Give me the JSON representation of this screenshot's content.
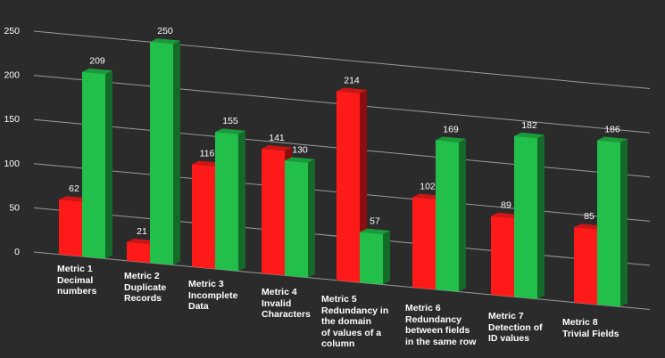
{
  "chart_data": {
    "type": "bar",
    "title": "",
    "xlabel": "",
    "ylabel": "",
    "ylim": [
      0,
      250
    ],
    "yticks": [
      0,
      50,
      100,
      150,
      200,
      250
    ],
    "grid": true,
    "legend": "none",
    "style": "3d-perspective",
    "categories": [
      [
        "Metric 1",
        "Decimal",
        "numbers"
      ],
      [
        "Metric 2",
        "Duplicate",
        "Records"
      ],
      [
        "Metric 3",
        "Incomplete",
        "Data"
      ],
      [
        "Metric 4",
        "Invalid",
        "Characters"
      ],
      [
        "Metric 5",
        "Redundancy in",
        "the domain",
        "of values of a",
        "column"
      ],
      [
        "Metric 6",
        "Redundancy",
        "between fields",
        "in the same row"
      ],
      [
        "Metric 7",
        "Detection of",
        "ID values"
      ],
      [
        "Metric 8",
        "Trivial Fields"
      ]
    ],
    "series": [
      {
        "values": [
          62,
          21,
          116,
          141,
          214,
          102,
          89,
          85
        ],
        "color": "#ff1a1a"
      },
      {
        "values": [
          209,
          250,
          155,
          130,
          57,
          169,
          182,
          186
        ],
        "color": "#22c04a"
      }
    ],
    "text_color": "#ffffff",
    "background": "#2b2b2b"
  }
}
